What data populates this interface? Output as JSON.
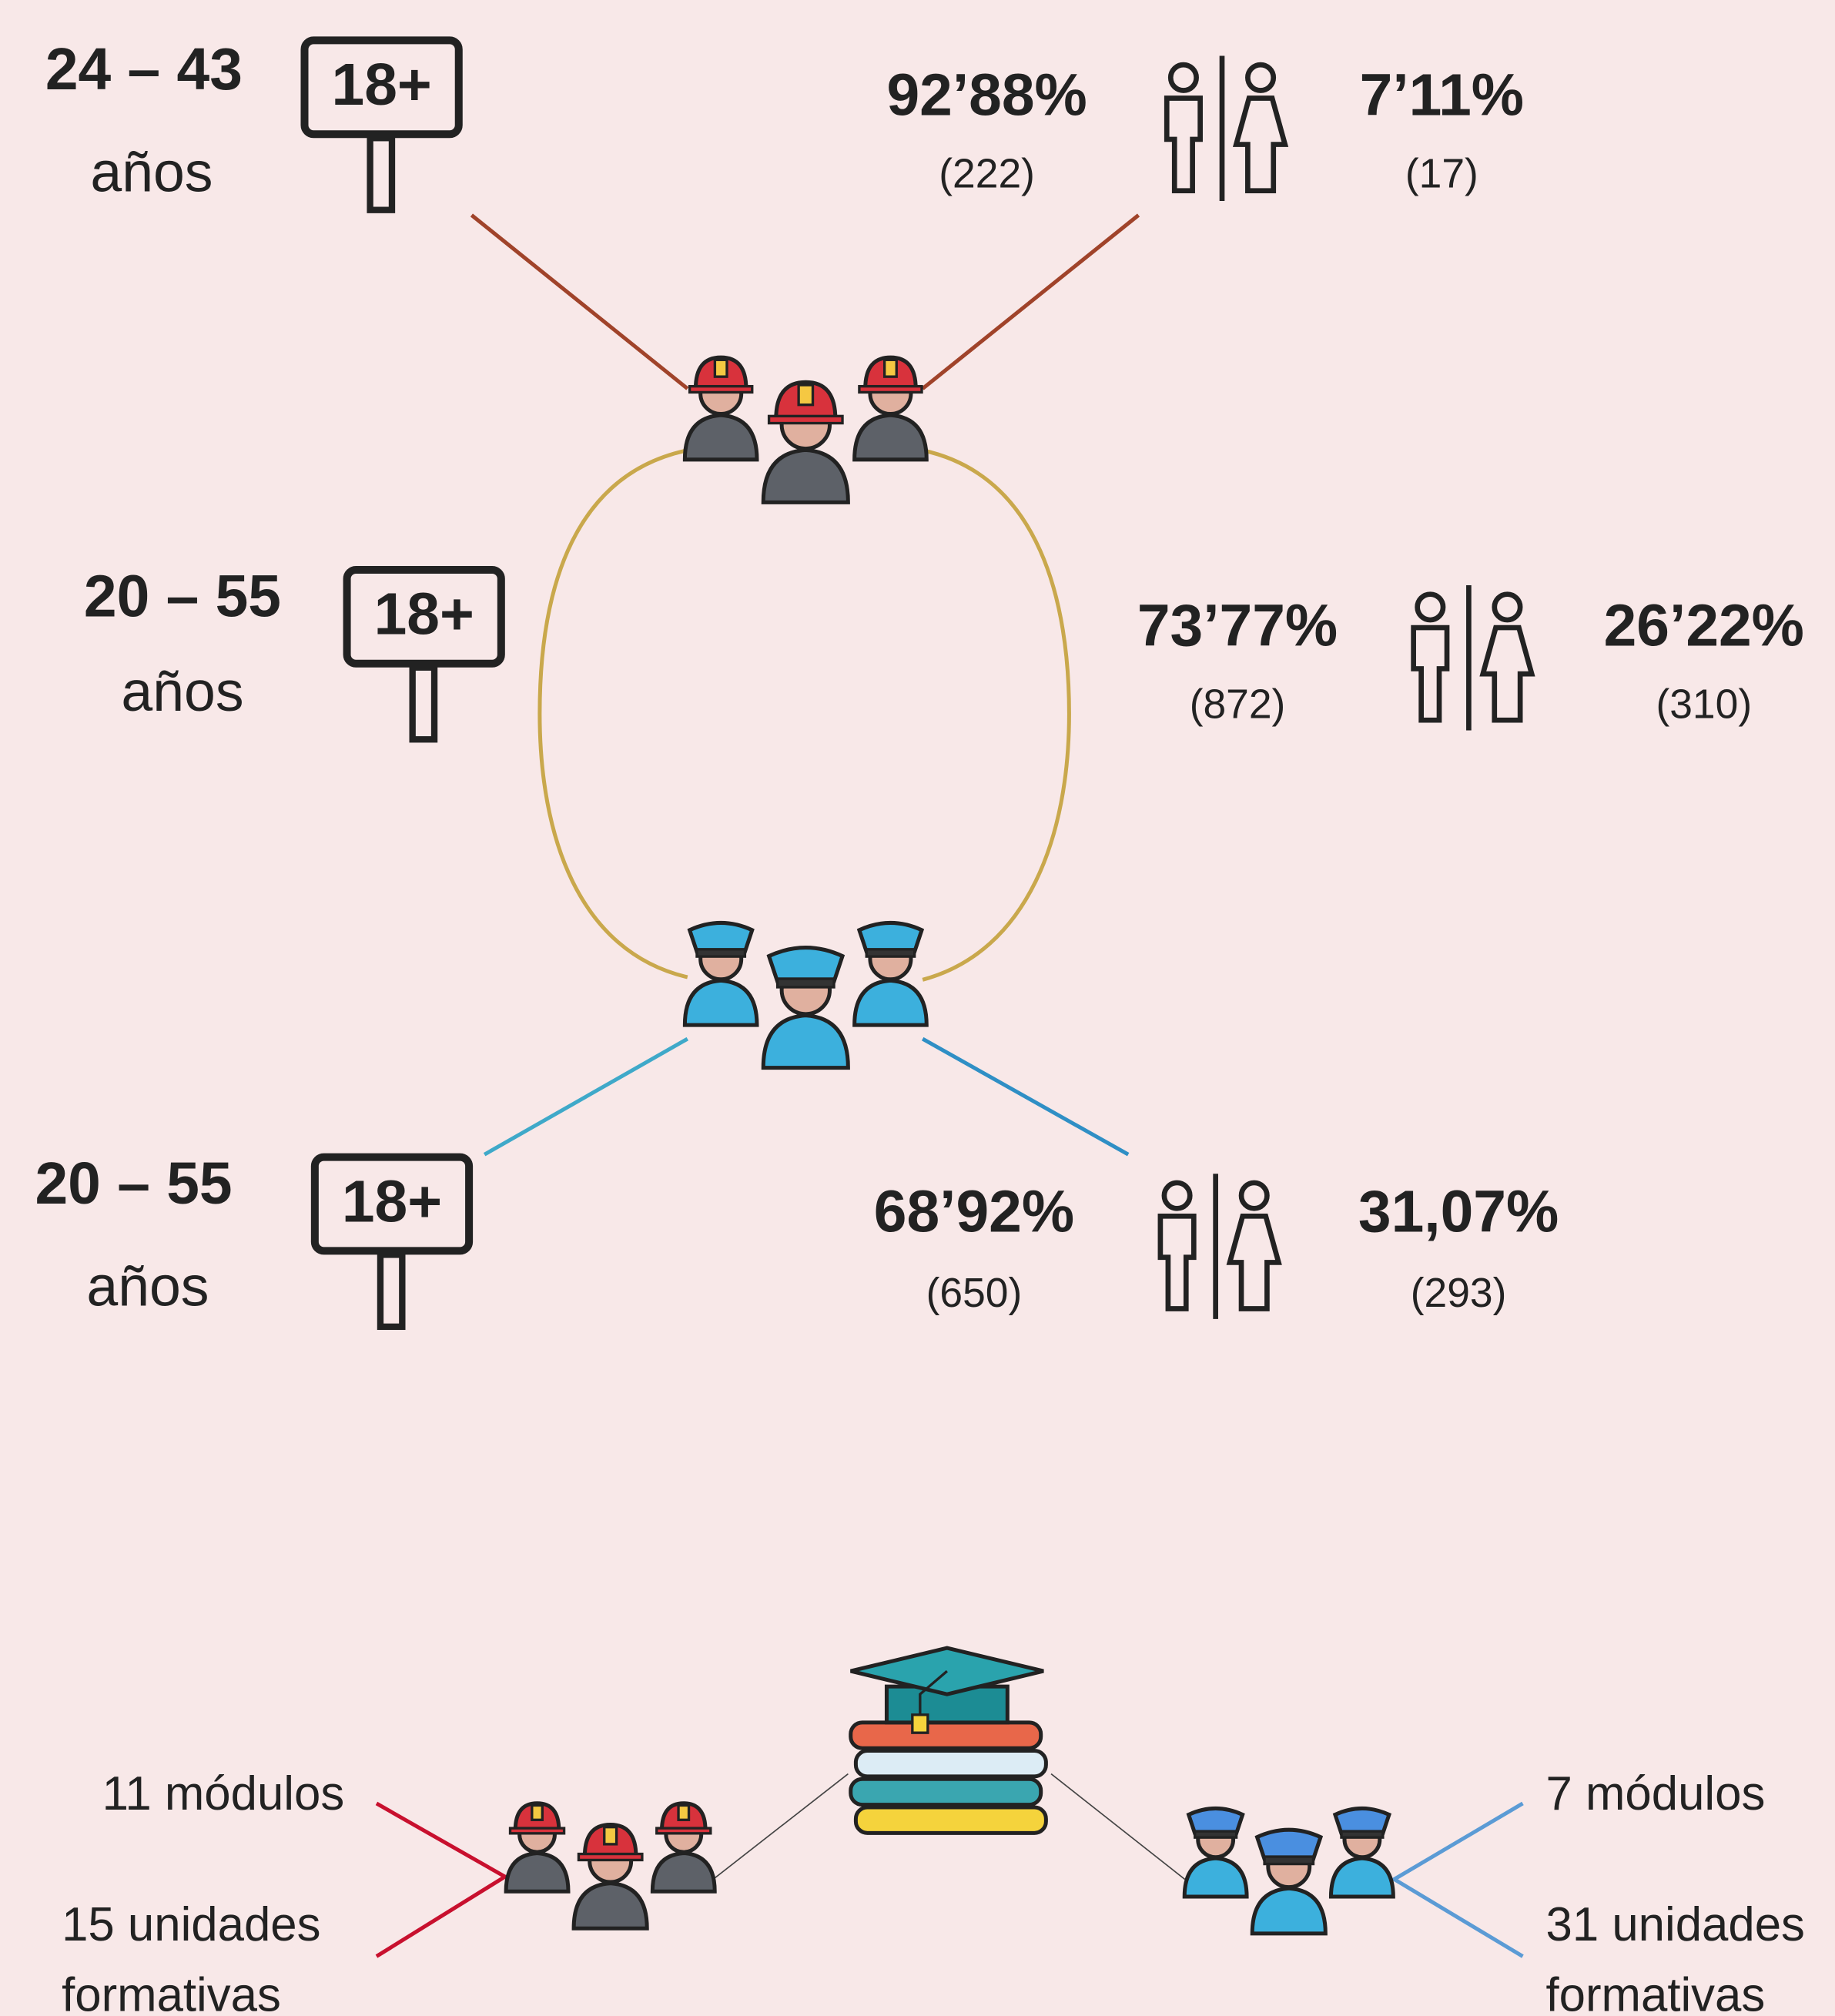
{
  "groups": [
    {
      "age_range": "24 – 43",
      "age_unit": "años",
      "age_sign": "18+",
      "male": {
        "percent": "92’88%",
        "count": "(222)"
      },
      "female": {
        "percent": "7’11%",
        "count": "(17)"
      }
    },
    {
      "age_range": "20 – 55",
      "age_unit": "años",
      "age_sign": "18+",
      "male": {
        "percent": "73’77%",
        "count": "(872)"
      },
      "female": {
        "percent": "26’22%",
        "count": "(310)"
      }
    },
    {
      "age_range": "20 – 55",
      "age_unit": "años",
      "age_sign": "18+",
      "male": {
        "percent": "68’92%",
        "count": "(650)"
      },
      "female": {
        "percent": "31,07%",
        "count": "(293)"
      }
    }
  ],
  "training": {
    "firefighters": {
      "modules": "11 módulos",
      "units": "15 unidades formativas"
    },
    "police": {
      "modules": "7 módulos",
      "units": "31 unidades formativas"
    }
  }
}
